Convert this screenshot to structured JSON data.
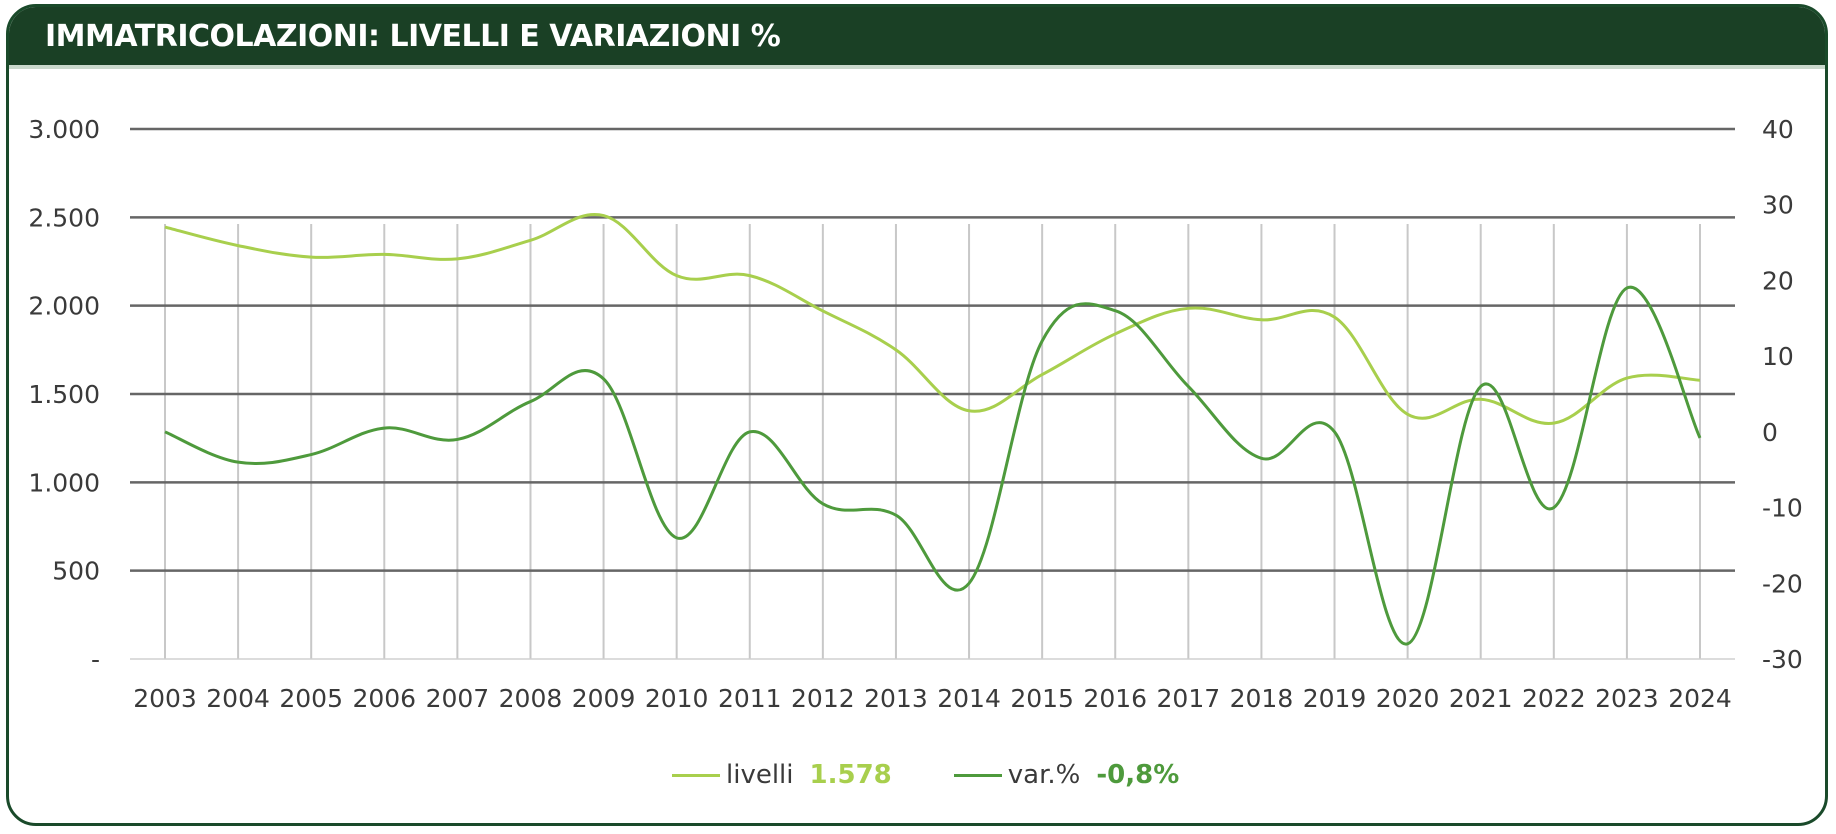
{
  "header": {
    "title": "IMMATRICOLAZIONI: LIVELLI E VARIAZIONI %"
  },
  "colors": {
    "header_bg": "#1a4025",
    "livelli": "#a8cf4d",
    "var": "#4e9a3c",
    "grid": "#666666",
    "vgrid": "#c8c8c8"
  },
  "legend": {
    "livelli_label": "livelli",
    "livelli_value": "1.578",
    "var_label": "var.%",
    "var_value": "-0,8%"
  },
  "chart_data": {
    "type": "line",
    "title": "IMMATRICOLAZIONI: LIVELLI E VARIAZIONI %",
    "categories": [
      "2003",
      "2004",
      "2005",
      "2006",
      "2007",
      "2008",
      "2009",
      "2010",
      "2011",
      "2012",
      "2013",
      "2014",
      "2015",
      "2016",
      "2017",
      "2018",
      "2019",
      "2020",
      "2021",
      "2022",
      "2023",
      "2024"
    ],
    "y_left": {
      "ylim": [
        0,
        3000
      ],
      "ticks": [
        0,
        500,
        1000,
        1500,
        2000,
        2500,
        3000
      ],
      "tick_labels": [
        "-",
        "500",
        "1.000",
        "1.500",
        "2.000",
        "2.500",
        "3.000"
      ]
    },
    "y_right": {
      "ylim": [
        -30,
        40
      ],
      "ticks": [
        -30,
        -20,
        -10,
        0,
        10,
        20,
        30,
        40
      ],
      "tick_labels": [
        "-30",
        "-20",
        "-10",
        "0",
        "10",
        "20",
        "30",
        "40"
      ]
    },
    "grid": true,
    "legend_position": "bottom",
    "series": [
      {
        "name": "livelli",
        "axis": "left",
        "values": [
          2445,
          2340,
          2275,
          2290,
          2265,
          2370,
          2510,
          2170,
          2170,
          1970,
          1750,
          1405,
          1610,
          1840,
          1985,
          1920,
          1935,
          1385,
          1470,
          1335,
          1590,
          1578
        ]
      },
      {
        "name": "var.%",
        "axis": "right",
        "values": [
          0,
          -4,
          -3,
          0.5,
          -1,
          4,
          7,
          -14,
          0,
          -9.5,
          -11,
          -20,
          12,
          16,
          6,
          -3.5,
          0,
          -28,
          6,
          -10,
          19,
          -0.8
        ]
      }
    ]
  }
}
